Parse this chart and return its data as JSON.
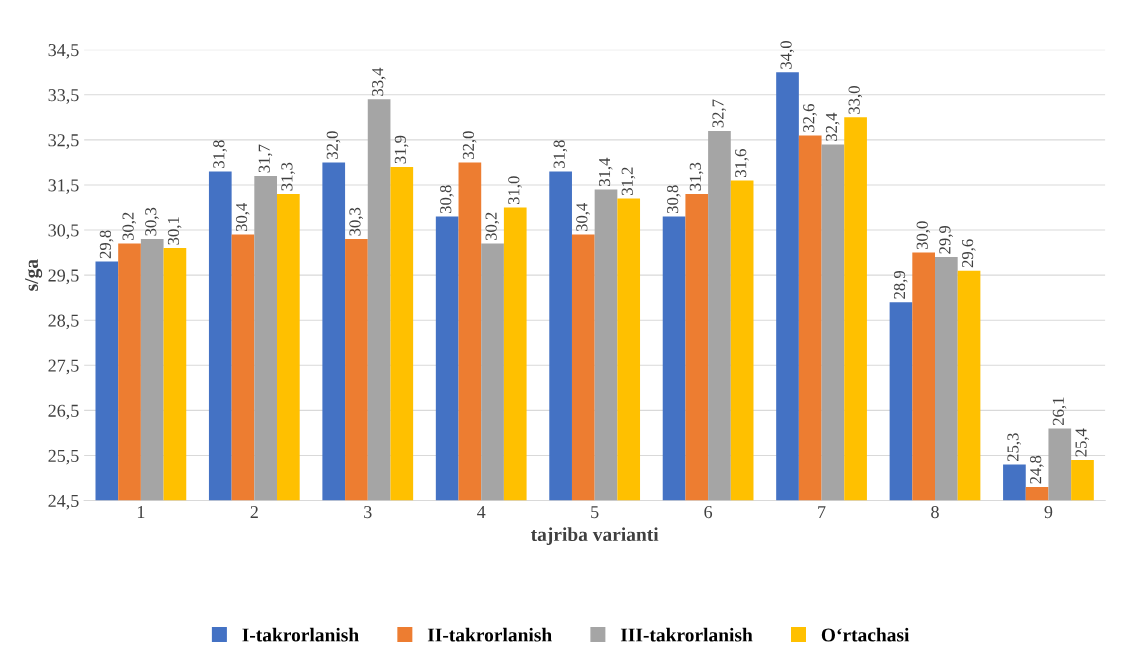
{
  "chart_data": {
    "type": "bar",
    "xlabel": "tajriba varianti",
    "ylabel": "s/ga",
    "categories": [
      "1",
      "2",
      "3",
      "4",
      "5",
      "6",
      "7",
      "8",
      "9"
    ],
    "series": [
      {
        "name": "I-takrorlanish",
        "color": "#4472c4",
        "values": [
          29.8,
          31.8,
          32.0,
          30.8,
          31.8,
          30.8,
          34.0,
          28.9,
          25.3
        ],
        "value_labels": [
          "29,8",
          "31,8",
          "32,0",
          "30,8",
          "31,8",
          "30,8",
          "34,0",
          "28,9",
          "25,3"
        ]
      },
      {
        "name": "II-takrorlanish",
        "color": "#ed7d31",
        "values": [
          30.2,
          30.4,
          30.3,
          32.0,
          30.4,
          31.3,
          32.6,
          30.0,
          24.8
        ],
        "value_labels": [
          "30,2",
          "30,4",
          "30,3",
          "32,0",
          "30,4",
          "31,3",
          "32,6",
          "30,0",
          "24,8"
        ]
      },
      {
        "name": "III-takrorlanish",
        "color": "#a5a5a5",
        "values": [
          30.3,
          31.7,
          33.4,
          30.2,
          31.4,
          32.7,
          32.4,
          29.9,
          26.1
        ],
        "value_labels": [
          "30,3",
          "31,7",
          "33,4",
          "30,2",
          "31,4",
          "32,7",
          "32,4",
          "29,9",
          "26,1"
        ]
      },
      {
        "name": "O‘rtachasi",
        "color": "#ffc000",
        "values": [
          30.1,
          31.3,
          31.9,
          31.0,
          31.2,
          31.6,
          33.0,
          29.6,
          25.4
        ],
        "value_labels": [
          "30,1",
          "31,3",
          "31,9",
          "31,0",
          "31,2",
          "31,6",
          "33,0",
          "29,6",
          "25,4"
        ]
      }
    ],
    "ylim": [
      24.5,
      34.5
    ],
    "yticks": [
      {
        "value": 24.5,
        "label": "24,5"
      },
      {
        "value": 25.5,
        "label": "25,5"
      },
      {
        "value": 26.5,
        "label": "26,5"
      },
      {
        "value": 27.5,
        "label": "27,5"
      },
      {
        "value": 28.5,
        "label": "28,5"
      },
      {
        "value": 29.5,
        "label": "29,5"
      },
      {
        "value": 30.5,
        "label": "30,5"
      },
      {
        "value": 31.5,
        "label": "31,5"
      },
      {
        "value": 32.5,
        "label": "32,5"
      },
      {
        "value": 33.5,
        "label": "33,5"
      },
      {
        "value": 34.5,
        "label": "34,5"
      }
    ],
    "grid": "y",
    "legend": "bottom"
  }
}
